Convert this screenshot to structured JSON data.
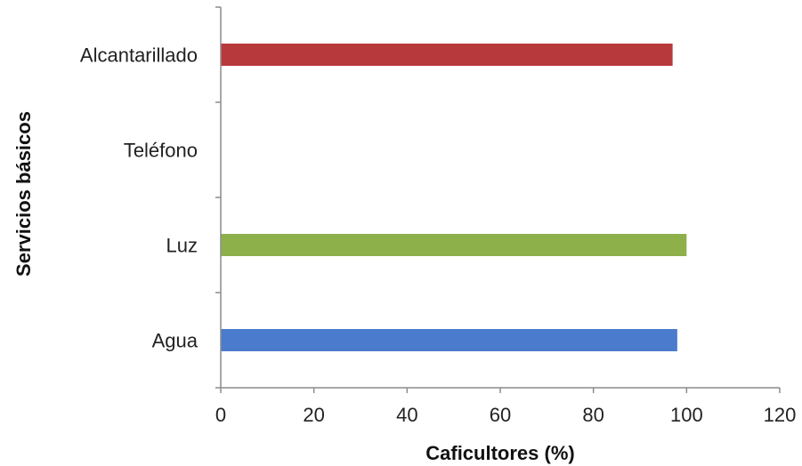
{
  "chart_data": {
    "type": "bar",
    "orientation": "horizontal",
    "categories": [
      "Alcantarillado",
      "Teléfono",
      "Luz",
      "Agua"
    ],
    "values": [
      97,
      0,
      100,
      98
    ],
    "colors": [
      "#b8393c",
      "#000000",
      "#8db04a",
      "#4a7bcc"
    ],
    "xlabel": "Caficultores (%)",
    "ylabel": "Servicios básicos",
    "xlim": [
      0,
      120
    ],
    "xticks": [
      "0",
      "20",
      "40",
      "60",
      "80",
      "100",
      "120"
    ],
    "grid": false,
    "legend": "none"
  }
}
